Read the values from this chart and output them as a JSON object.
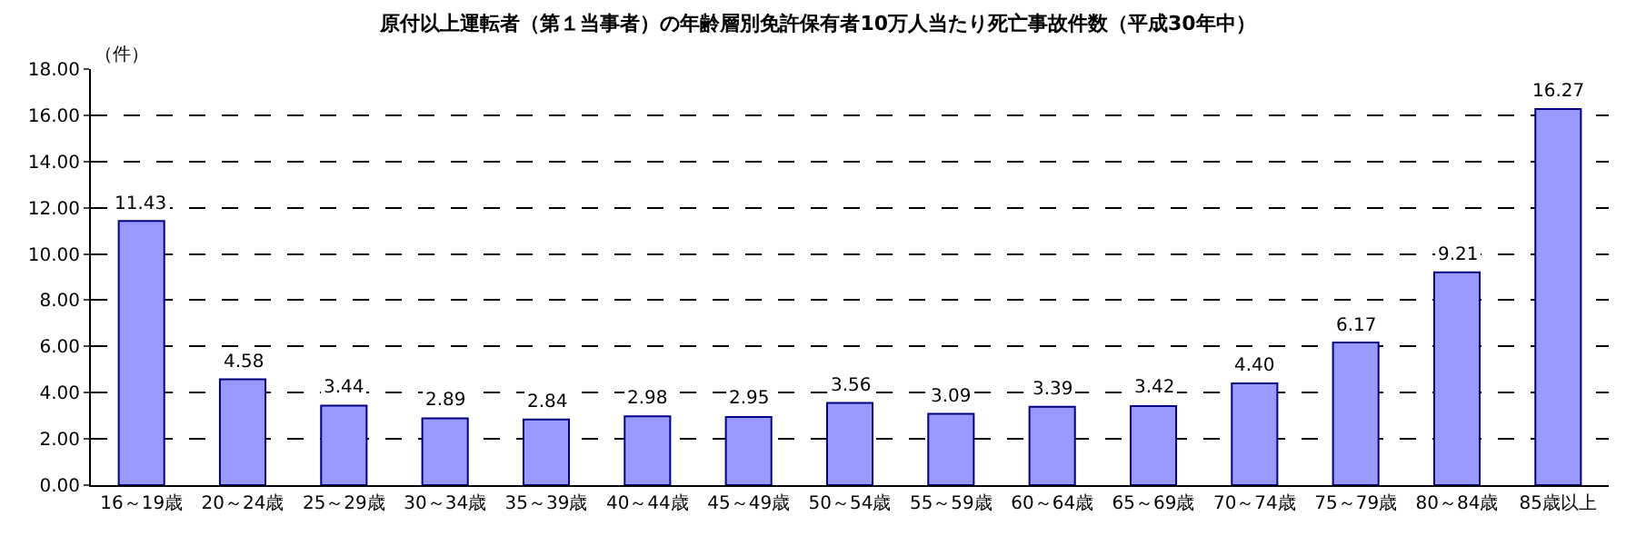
{
  "chart_data": {
    "type": "bar",
    "title": "原付以上運転者（第１当事者）の年齢層別免許保有者10万人当たり死亡事故件数（平成30年中）",
    "ylabel": "（件）",
    "categories": [
      "16～19歳",
      "20～24歳",
      "25～29歳",
      "30～34歳",
      "35～39歳",
      "40～44歳",
      "45～49歳",
      "50～54歳",
      "55～59歳",
      "60～64歳",
      "65～69歳",
      "70～74歳",
      "75～79歳",
      "80～84歳",
      "85歳以上"
    ],
    "values": [
      11.43,
      4.58,
      3.44,
      2.89,
      2.84,
      2.98,
      2.95,
      3.56,
      3.09,
      3.39,
      3.42,
      4.4,
      6.17,
      9.21,
      16.27
    ],
    "value_labels": [
      "11.43",
      "4.58",
      "3.44",
      "2.89",
      "2.84",
      "2.98",
      "2.95",
      "3.56",
      "3.09",
      "3.39",
      "3.42",
      "4.40",
      "6.17",
      "9.21",
      "16.27"
    ],
    "color": "#9999ff",
    "ylim": [
      0,
      18
    ],
    "yticks": [
      {
        "value": 0,
        "label": "0.00"
      },
      {
        "value": 2,
        "label": "2.00"
      },
      {
        "value": 4,
        "label": "4.00"
      },
      {
        "value": 6,
        "label": "6.00"
      },
      {
        "value": 8,
        "label": "8.00"
      },
      {
        "value": 10,
        "label": "10.00"
      },
      {
        "value": 12,
        "label": "12.00"
      },
      {
        "value": 14,
        "label": "14.00"
      },
      {
        "value": 16,
        "label": "16.00"
      },
      {
        "value": 18,
        "label": "18.00"
      }
    ],
    "grid": "y",
    "legend": false
  }
}
